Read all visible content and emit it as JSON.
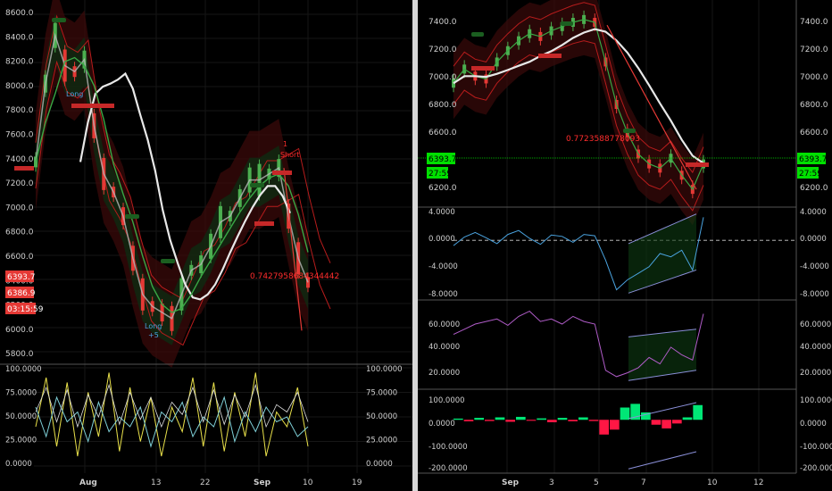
{
  "colors": {
    "background": "#000000",
    "grid": "#161616",
    "axis_text": "#cfcfcf",
    "price_up": "#4caf50",
    "price_down": "#e53935",
    "ma_line": "#e8e8e8",
    "ma_green": "#39a845",
    "channel_red": "#b71c1c",
    "tag_green": "#1b5e20",
    "tag_red": "#c62828",
    "crosshair": "#00e000",
    "macd": "#4aa3df",
    "rsi": "#b05cc8",
    "osc_yellow": "#e8e04a",
    "osc_cyan": "#7fd0d8",
    "osc_white": "#dddddd",
    "hist_green": "#00e676",
    "hist_red": "#ff1744",
    "divergence": "#8a8fd8"
  },
  "left_chart": {
    "price_axis": {
      "ticks": [
        "8600.0",
        "8400.0",
        "8200.0",
        "8000.0",
        "7800.0",
        "7600.0",
        "7400.0",
        "7200.0",
        "7000.0",
        "6800.0",
        "6600.0",
        "6400.0",
        "6200.0",
        "6000.0",
        "5800.0"
      ]
    },
    "price_labels": [
      "6393.7",
      "6386.9",
      "03:15:59"
    ],
    "annotations": {
      "fib": "0.7427958684344442",
      "long1": "Long",
      "long2": "Long",
      "plus5": "+5",
      "short": "Short",
      "num1": "1"
    },
    "oscillator_axis": {
      "left": [
        "100.0000",
        "75.0000",
        "50.0000",
        "25.0000",
        "0.0000"
      ],
      "right": [
        "100.0000",
        "75.0000",
        "50.0000",
        "25.0000",
        "0.0000"
      ]
    },
    "time_axis": [
      "Aug",
      "13",
      "22",
      "Sep",
      "10",
      "19"
    ]
  },
  "right_chart": {
    "price_axis": {
      "left": [
        "7400.0",
        "7200.0",
        "7000.0",
        "6800.0",
        "6600.0",
        "6200.0"
      ],
      "right": [
        "7400.0",
        "7200.0",
        "7000.0",
        "6800.0",
        "6600.0",
        "6200.0"
      ]
    },
    "price_labels": [
      "6393.7",
      "27:59"
    ],
    "annotations": {
      "fib": "0.7723588778093"
    },
    "macd_axis": {
      "left": [
        "4.0000",
        "0.0000",
        "-4.0000",
        "-8.0000"
      ],
      "right": [
        "4.0000",
        "0.0000",
        "-4.0000",
        "-8.0000"
      ]
    },
    "rsi_axis": {
      "left": [
        "60.0000",
        "40.0000",
        "20.0000"
      ],
      "right": [
        "60.0000",
        "40.0000",
        "20.0000"
      ]
    },
    "hist_axis": {
      "left": [
        "100.0000",
        "0.0000",
        "-100.0000",
        "-200.0000"
      ],
      "right": [
        "100.0000",
        "0.0000",
        "-100.0000",
        "-200.0000"
      ]
    },
    "time_axis": [
      "Sep",
      "3",
      "5",
      "7",
      "10",
      "12"
    ]
  },
  "chart_data": [
    {
      "type": "line",
      "title": "",
      "xlabel": "",
      "ylabel": "",
      "ylim": [
        5750,
        8700
      ],
      "x_ticks": [
        "Aug",
        "13",
        "22",
        "Sep",
        "10",
        "19"
      ],
      "series": [
        {
          "values": [
            7400,
            8050,
            8450,
            8200,
            8150,
            8250,
            7700,
            7300,
            7150,
            6950,
            6600,
            6300,
            6200,
            6150,
            6100,
            6300,
            6500,
            6550,
            6700,
            6900,
            6950,
            7100,
            7250,
            7250,
            7300,
            7350,
            6950,
            6600,
            6400
          ]
        }
      ]
    },
    {
      "type": "line",
      "title": "",
      "ylim": [
        0,
        100
      ],
      "series": [
        {
          "values": [
            40,
            90,
            20,
            85,
            10,
            75,
            30,
            95,
            15,
            80,
            25,
            70,
            10,
            60,
            35,
            90,
            20,
            85,
            15,
            75,
            30,
            95,
            10,
            55,
            40,
            80,
            20
          ]
        },
        {
          "values": [
            60,
            30,
            70,
            45,
            55,
            25,
            65,
            35,
            50,
            40,
            60,
            20,
            55,
            45,
            65,
            30,
            50,
            40,
            70,
            25,
            55,
            35,
            60,
            45,
            50,
            30,
            40
          ]
        }
      ]
    },
    {
      "type": "line",
      "title": "",
      "ylim": [
        6100,
        7500
      ],
      "x_ticks": [
        "Sep",
        "3",
        "5",
        "7",
        "10",
        "12"
      ],
      "series": [
        {
          "values": [
            6950,
            7050,
            7000,
            6980,
            7100,
            7180,
            7250,
            7300,
            7280,
            7320,
            7350,
            7380,
            7400,
            7380,
            7100,
            6800,
            6600,
            6450,
            6380,
            6350,
            6420,
            6300,
            6200,
            6380
          ]
        }
      ]
    },
    {
      "type": "line",
      "title": "",
      "ylim": [
        -8.5,
        4.5
      ],
      "series": [
        {
          "values": [
            -0.8,
            0.5,
            1.2,
            0.4,
            -0.5,
            0.9,
            1.5,
            0.3,
            -0.6,
            0.8,
            0.6,
            -0.3,
            0.9,
            0.7,
            -3,
            -7.5,
            -6,
            -5,
            -4,
            -2,
            -2.5,
            -1.5,
            -4.5,
            3.5
          ]
        }
      ]
    },
    {
      "type": "line",
      "title": "",
      "ylim": [
        8,
        72
      ],
      "series": [
        {
          "values": [
            48,
            52,
            56,
            58,
            60,
            55,
            62,
            66,
            58,
            60,
            56,
            62,
            58,
            56,
            20,
            15,
            18,
            22,
            30,
            25,
            38,
            32,
            28,
            64
          ]
        }
      ]
    },
    {
      "type": "bar",
      "title": "",
      "ylim": [
        -210,
        110
      ],
      "values": [
        5,
        -6,
        8,
        -5,
        10,
        -8,
        12,
        -4,
        6,
        -10,
        8,
        -6,
        10,
        -5,
        -60,
        -40,
        50,
        65,
        30,
        -20,
        -35,
        -15,
        10,
        60
      ]
    }
  ]
}
